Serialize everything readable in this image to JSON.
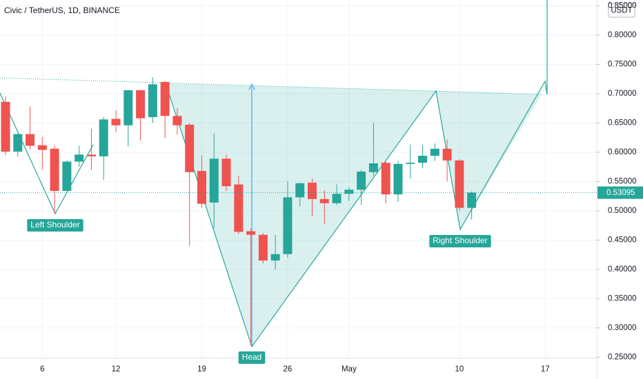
{
  "chart_data": {
    "type": "candlestick",
    "title": "Civic / TetherUS, 1D, BINANCE",
    "currency": "USDT",
    "categories": [
      null,
      null,
      null,
      "6",
      null,
      null,
      null,
      null,
      null,
      "12",
      null,
      null,
      null,
      null,
      null,
      null,
      "19",
      null,
      null,
      null,
      null,
      null,
      null,
      "26",
      null,
      null,
      null,
      null,
      "May",
      null,
      null,
      null,
      null,
      null,
      null,
      null,
      null,
      "10",
      null,
      null,
      null,
      null,
      null,
      null,
      "17",
      null,
      null,
      null,
      null
    ],
    "open": [
      0.686,
      0.601,
      0.631,
      0.612,
      0.606,
      0.534,
      0.584,
      0.596,
      0.593,
      0.657,
      0.646,
      0.706,
      0.66,
      0.72,
      0.662,
      0.647,
      0.568,
      0.514,
      0.589,
      0.545,
      0.465,
      0.459,
      0.415,
      0.426,
      0.523,
      0.548,
      0.52,
      0.513,
      0.529,
      0.536,
      0.566,
      0.582,
      0.528,
      0.58,
      0.582,
      0.594,
      0.606,
      0.586,
      0.505,
      null,
      null,
      null,
      null,
      null,
      null,
      null,
      null,
      null,
      null
    ],
    "high": [
      0.695,
      0.632,
      0.678,
      0.626,
      0.612,
      0.586,
      0.611,
      0.64,
      0.66,
      0.672,
      0.706,
      0.706,
      0.728,
      0.722,
      0.675,
      0.65,
      0.595,
      0.632,
      0.596,
      0.56,
      0.47,
      0.462,
      0.459,
      0.55,
      0.548,
      0.555,
      0.535,
      0.545,
      0.54,
      0.57,
      0.65,
      0.585,
      0.585,
      0.613,
      0.612,
      0.615,
      0.622,
      0.588,
      0.533,
      null,
      null,
      null,
      null,
      null,
      null,
      null,
      null,
      null,
      null
    ],
    "low": [
      0.595,
      0.592,
      0.605,
      0.57,
      0.495,
      0.534,
      0.575,
      0.57,
      0.553,
      0.634,
      0.61,
      0.62,
      0.65,
      0.624,
      0.63,
      0.44,
      0.505,
      0.47,
      0.534,
      0.46,
      0.27,
      0.41,
      0.4,
      0.42,
      0.508,
      0.491,
      0.478,
      0.51,
      0.517,
      0.51,
      0.56,
      0.513,
      0.515,
      0.555,
      0.573,
      0.585,
      0.55,
      0.5,
      0.485,
      null,
      null,
      null,
      null,
      null,
      null,
      null,
      null,
      null,
      null
    ],
    "close": [
      0.601,
      0.631,
      0.611,
      0.604,
      0.534,
      0.584,
      0.596,
      0.593,
      0.656,
      0.646,
      0.706,
      0.658,
      0.716,
      0.662,
      0.646,
      0.566,
      0.512,
      0.589,
      0.542,
      0.464,
      0.459,
      0.415,
      0.426,
      0.523,
      0.547,
      0.52,
      0.513,
      0.529,
      0.536,
      0.567,
      0.581,
      0.528,
      0.58,
      0.582,
      0.594,
      0.606,
      0.586,
      0.505,
      0.531,
      null,
      null,
      null,
      null,
      null,
      null,
      null,
      null,
      null,
      null
    ],
    "up_color": "#26a69a",
    "down_color": "#ef5350",
    "ylim": [
      0.248,
      0.86
    ],
    "yticks": [
      {
        "value": 0.25,
        "label": "0.25000"
      },
      {
        "value": 0.3,
        "label": "0.30000"
      },
      {
        "value": 0.35,
        "label": "0.35000"
      },
      {
        "value": 0.4,
        "label": "0.40000"
      },
      {
        "value": 0.45,
        "label": "0.45000"
      },
      {
        "value": 0.5,
        "label": "0.50000"
      },
      {
        "value": 0.55,
        "label": "0.55000"
      },
      {
        "value": 0.6,
        "label": "0.60000"
      },
      {
        "value": 0.65,
        "label": "0.65000"
      },
      {
        "value": 0.7,
        "label": "0.70000"
      },
      {
        "value": 0.75,
        "label": "0.75000"
      },
      {
        "value": 0.8,
        "label": "0.80000"
      },
      {
        "value": 0.85,
        "label": "0.85000"
      }
    ],
    "last_price": 0.53095,
    "grid": true,
    "annotations": [
      {
        "text": "Left Shoulder"
      },
      {
        "text": "Head"
      },
      {
        "text": "Right Shoulder"
      }
    ]
  }
}
